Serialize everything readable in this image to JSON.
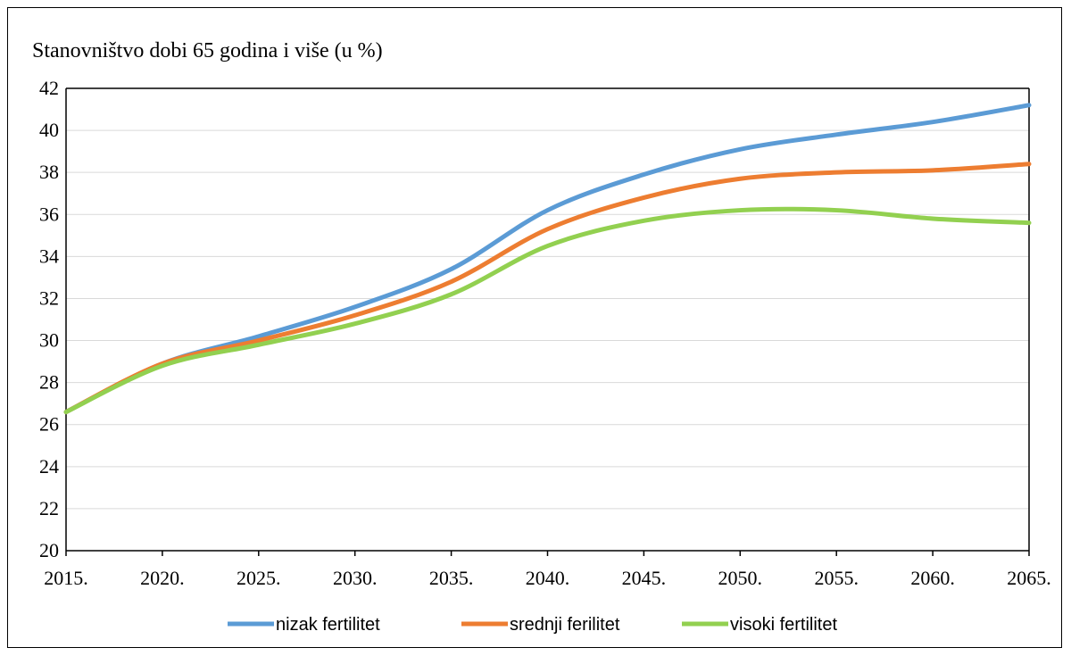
{
  "chart_data": {
    "type": "line",
    "title": "Stanovništvo dobi 65 godina i više (u %)",
    "xlabel": "",
    "ylabel": "",
    "ylim": [
      20,
      42
    ],
    "yticks": [
      "20",
      "22",
      "24",
      "26",
      "28",
      "30",
      "32",
      "34",
      "36",
      "38",
      "40",
      "42"
    ],
    "x": [
      2015,
      2020,
      2025,
      2030,
      2035,
      2040,
      2045,
      2050,
      2055,
      2060,
      2065
    ],
    "xtick_labels": [
      "2015.",
      "2020.",
      "2025.",
      "2030.",
      "2035.",
      "2040.",
      "2045.",
      "2050.",
      "2055.",
      "2060.",
      "2065."
    ],
    "grid": true,
    "legend_position": "bottom",
    "series": [
      {
        "name": "nizak fertilitet",
        "color": "#5b9bd5",
        "values": [
          26.6,
          28.9,
          30.2,
          31.6,
          33.4,
          36.2,
          37.9,
          39.1,
          39.8,
          40.4,
          41.2
        ]
      },
      {
        "name": "srednji ferilitet",
        "color": "#ed7d31",
        "values": [
          26.6,
          28.9,
          30.0,
          31.2,
          32.8,
          35.3,
          36.8,
          37.7,
          38.0,
          38.1,
          38.4
        ]
      },
      {
        "name": "visoki fertilitet",
        "color": "#92d050",
        "values": [
          26.6,
          28.8,
          29.8,
          30.8,
          32.2,
          34.5,
          35.7,
          36.2,
          36.2,
          35.8,
          35.6
        ]
      }
    ]
  }
}
